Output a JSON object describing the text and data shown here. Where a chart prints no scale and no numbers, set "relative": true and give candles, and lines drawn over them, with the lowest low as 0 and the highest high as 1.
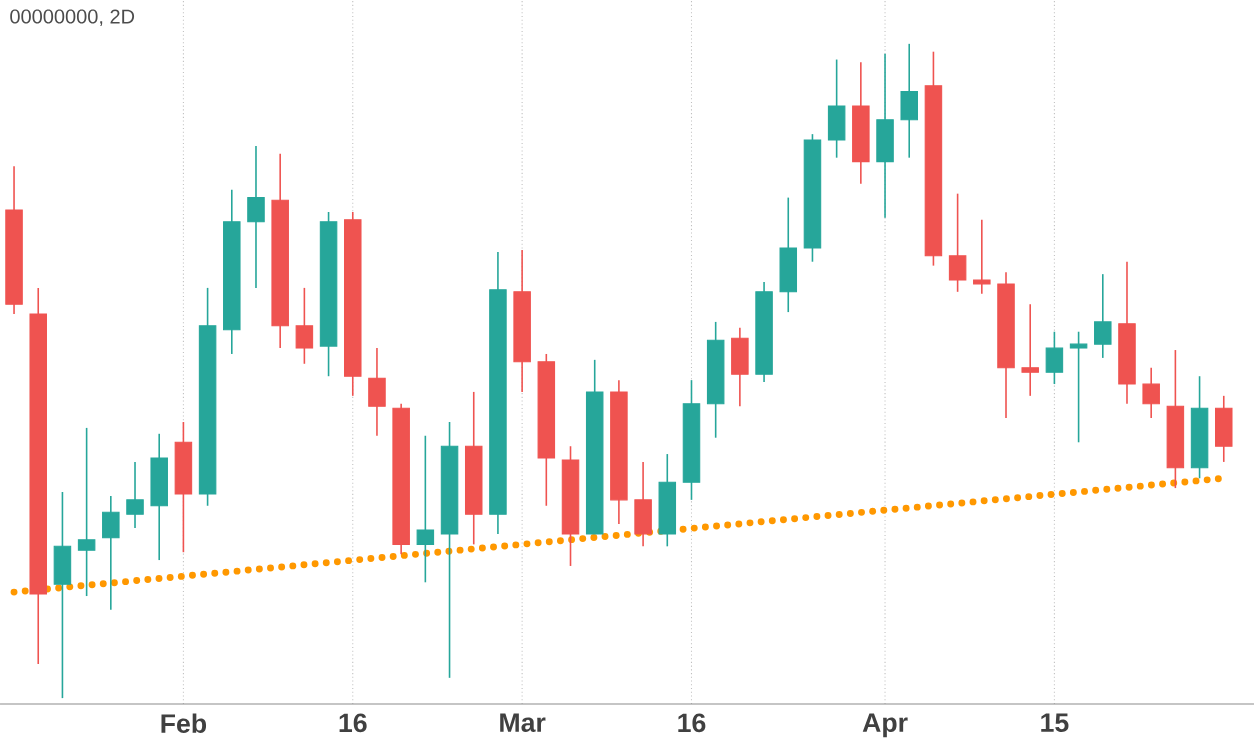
{
  "chart_data": {
    "type": "candlestick",
    "title": "00000000, 2D",
    "relative": true,
    "grid": "x",
    "categories": [
      null,
      null,
      null,
      null,
      null,
      null,
      null,
      "Feb",
      null,
      null,
      null,
      null,
      null,
      null,
      "16",
      null,
      null,
      null,
      null,
      null,
      null,
      "Mar",
      null,
      null,
      null,
      null,
      null,
      null,
      "16",
      null,
      null,
      null,
      null,
      null,
      null,
      null,
      "Apr",
      null,
      null,
      null,
      null,
      null,
      null,
      "15",
      null,
      null,
      null,
      null,
      null,
      null,
      null
    ],
    "ohlc": [
      [
        0.746,
        0.813,
        0.587,
        0.602
      ],
      [
        0.587,
        0.627,
        0.052,
        0.159
      ],
      [
        0.174,
        0.315,
        0,
        0.232
      ],
      [
        0.226,
        0.413,
        0.156,
        0.242
      ],
      [
        0.245,
        0.309,
        0.135,
        0.284
      ],
      [
        0.281,
        0.361,
        0.26,
        0.303
      ],
      [
        0.294,
        0.404,
        0.211,
        0.367
      ],
      [
        0.391,
        0.422,
        0.223,
        0.312
      ],
      [
        0.312,
        0.627,
        0.294,
        0.569
      ],
      [
        0.563,
        0.777,
        0.526,
        0.728
      ],
      [
        0.728,
        0.844,
        0.627,
        0.765
      ],
      [
        0.761,
        0.832,
        0.535,
        0.569
      ],
      [
        0.569,
        0.627,
        0.511,
        0.535
      ],
      [
        0.538,
        0.743,
        0.492,
        0.728
      ],
      [
        0.731,
        0.743,
        0.462,
        0.492
      ],
      [
        0.489,
        0.535,
        0.401,
        0.446
      ],
      [
        0.443,
        0.45,
        0.22,
        0.235
      ],
      [
        0.235,
        0.401,
        0.177,
        0.257
      ],
      [
        0.251,
        0.422,
        0.031,
        0.385
      ],
      [
        0.385,
        0.468,
        0.235,
        0.281
      ],
      [
        0.281,
        0.682,
        0.251,
        0.624
      ],
      [
        0.621,
        0.685,
        0.468,
        0.514
      ],
      [
        0.514,
        0.526,
        0.294,
        0.367
      ],
      [
        0.364,
        0.385,
        0.202,
        0.251
      ],
      [
        0.251,
        0.517,
        0.251,
        0.468
      ],
      [
        0.468,
        0.486,
        0.266,
        0.303
      ],
      [
        0.303,
        0.361,
        0.232,
        0.251
      ],
      [
        0.251,
        0.373,
        0.232,
        0.33
      ],
      [
        0.33,
        0.486,
        0.303,
        0.45
      ],
      [
        0.45,
        0.575,
        0.398,
        0.547
      ],
      [
        0.55,
        0.566,
        0.446,
        0.495
      ],
      [
        0.495,
        0.636,
        0.483,
        0.621
      ],
      [
        0.621,
        0.765,
        0.59,
        0.688
      ],
      [
        0.688,
        0.862,
        0.667,
        0.853
      ],
      [
        0.853,
        0.976,
        0.826,
        0.905
      ],
      [
        0.905,
        0.972,
        0.786,
        0.82
      ],
      [
        0.82,
        0.985,
        0.734,
        0.884
      ],
      [
        0.884,
        1,
        0.826,
        0.927
      ],
      [
        0.936,
        0.988,
        0.661,
        0.676
      ],
      [
        0.676,
        0.771,
        0.621,
        0.639
      ],
      [
        0.639,
        0.731,
        0.618,
        0.633
      ],
      [
        0.633,
        0.651,
        0.428,
        0.505
      ],
      [
        0.505,
        0.602,
        0.462,
        0.498
      ],
      [
        0.498,
        0.56,
        0.48,
        0.535
      ],
      [
        0.535,
        0.56,
        0.391,
        0.541
      ],
      [
        0.541,
        0.648,
        0.52,
        0.575
      ],
      [
        0.572,
        0.667,
        0.45,
        0.48
      ],
      [
        0.48,
        0.505,
        0.428,
        0.45
      ],
      [
        0.446,
        0.532,
        0.321,
        0.352
      ],
      [
        0.352,
        0.492,
        0.336,
        0.443
      ],
      [
        0.443,
        0.462,
        0.361,
        0.385
      ]
    ],
    "colors": [
      "#ef5350",
      "#ef5350",
      "#26a69a",
      "#26a69a",
      "#26a69a",
      "#26a69a",
      "#26a69a",
      "#ef5350",
      "#26a69a",
      "#26a69a",
      "#26a69a",
      "#ef5350",
      "#ef5350",
      "#26a69a",
      "#ef5350",
      "#ef5350",
      "#ef5350",
      "#26a69a",
      "#26a69a",
      "#ef5350",
      "#26a69a",
      "#ef5350",
      "#ef5350",
      "#ef5350",
      "#26a69a",
      "#ef5350",
      "#ef5350",
      "#26a69a",
      "#26a69a",
      "#26a69a",
      "#ef5350",
      "#26a69a",
      "#26a69a",
      "#26a69a",
      "#26a69a",
      "#ef5350",
      "#26a69a",
      "#26a69a",
      "#ef5350",
      "#ef5350",
      "#ef5350",
      "#ef5350",
      "#ef5350",
      "#26a69a",
      "#26a69a",
      "#26a69a",
      "#ef5350",
      "#ef5350",
      "#ef5350",
      "#26a69a",
      "#ef5350"
    ],
    "series": [
      {
        "type": "line",
        "color": "#ff9800",
        "line_style": "dotted",
        "values": [
          0.162,
          null,
          null,
          null,
          null,
          null,
          null,
          null,
          null,
          null,
          null,
          null,
          null,
          null,
          null,
          null,
          null,
          null,
          null,
          null,
          null,
          null,
          null,
          null,
          null,
          null,
          null,
          null,
          null,
          null,
          null,
          null,
          null,
          null,
          null,
          null,
          null,
          null,
          null,
          null,
          null,
          null,
          null,
          null,
          null,
          null,
          null,
          null,
          null,
          null,
          0.336
        ]
      }
    ]
  }
}
